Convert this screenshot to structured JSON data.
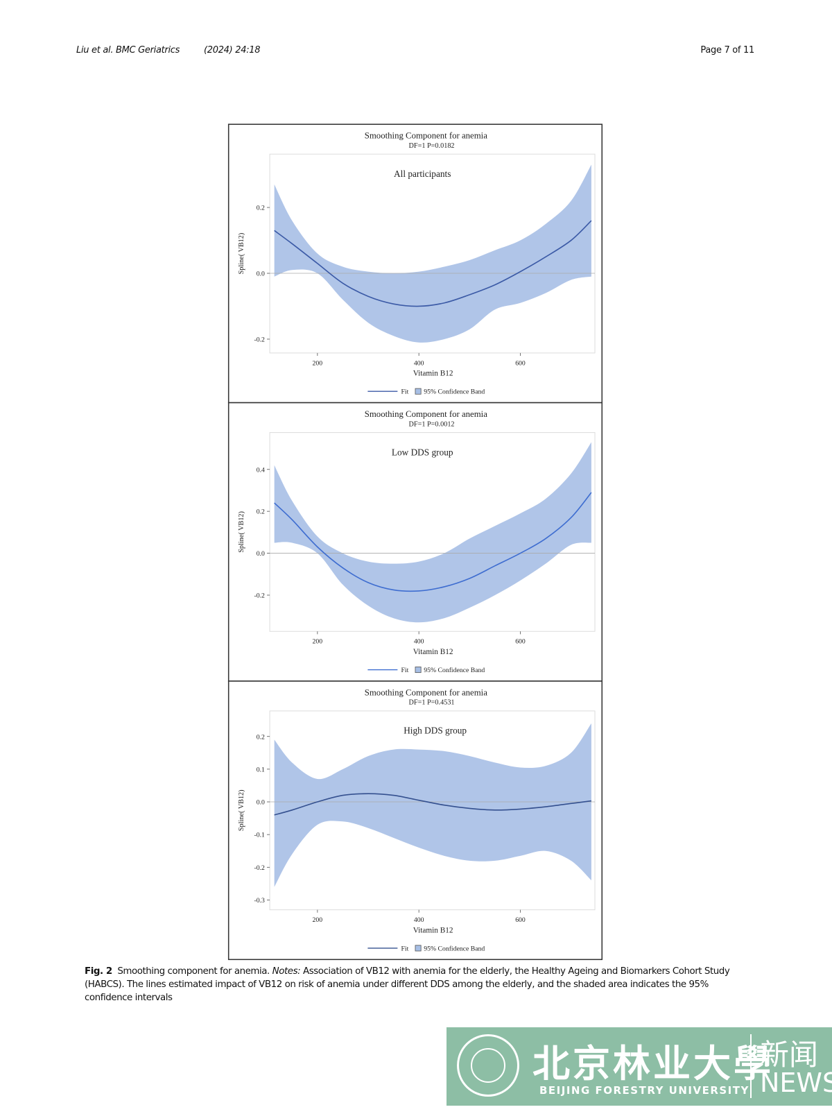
{
  "header": {
    "journal": "Liu et al. BMC Geriatrics",
    "citation": "(2024) 24:18",
    "page": "Page 7 of 11"
  },
  "chart_data": [
    {
      "type": "line",
      "title": "Smoothing Component for anemia",
      "subtitle": "DF=1 P=0.0182",
      "annotation": "All participants",
      "x_label": "Vitamin B12",
      "y_label": "Spline( VB12)",
      "x": [
        115,
        150,
        200,
        250,
        300,
        350,
        400,
        450,
        500,
        550,
        600,
        650,
        700,
        740
      ],
      "series": [
        {
          "name": "Fit",
          "color": "#3b5aa6",
          "values": [
            0.13,
            0.09,
            0.03,
            -0.03,
            -0.07,
            -0.093,
            -0.1,
            -0.09,
            -0.065,
            -0.035,
            0.005,
            0.05,
            0.1,
            0.16
          ]
        }
      ],
      "band": {
        "name": "95% Confidence Band",
        "color": "#a7bfe5",
        "upper": [
          0.27,
          0.16,
          0.06,
          0.02,
          0.005,
          0.0,
          0.005,
          0.02,
          0.04,
          0.07,
          0.1,
          0.15,
          0.22,
          0.33
        ],
        "lower": [
          -0.01,
          0.01,
          0.0,
          -0.08,
          -0.15,
          -0.19,
          -0.21,
          -0.2,
          -0.17,
          -0.11,
          -0.09,
          -0.06,
          -0.02,
          -0.01
        ]
      },
      "reference_line": 0,
      "xlim": [
        106,
        747
      ],
      "xticks": [
        200,
        400,
        600
      ],
      "ylim": [
        -0.242,
        0.362
      ],
      "yticks": [
        -0.2,
        {
          "value": 0,
          "label": "0.0"
        },
        0.2
      ]
    },
    {
      "type": "line",
      "title": "Smoothing Component for anemia",
      "subtitle": "DF=1 P=0.0012",
      "annotation": "Low DDS group",
      "x_label": "Vitamin B12",
      "y_label": "Spline( VB12)",
      "x": [
        115,
        150,
        200,
        250,
        300,
        350,
        400,
        450,
        500,
        550,
        600,
        650,
        700,
        740
      ],
      "series": [
        {
          "name": "Fit",
          "color": "#3e6dd0",
          "values": [
            0.24,
            0.16,
            0.03,
            -0.07,
            -0.14,
            -0.175,
            -0.18,
            -0.16,
            -0.12,
            -0.06,
            0.0,
            0.07,
            0.17,
            0.29
          ]
        }
      ],
      "band": {
        "name": "95% Confidence Band",
        "color": "#a7bfe5",
        "upper": [
          0.42,
          0.25,
          0.08,
          0.0,
          -0.04,
          -0.05,
          -0.04,
          0.0,
          0.07,
          0.13,
          0.19,
          0.26,
          0.38,
          0.53
        ],
        "lower": [
          0.05,
          0.05,
          0.0,
          -0.15,
          -0.25,
          -0.31,
          -0.33,
          -0.31,
          -0.26,
          -0.2,
          -0.13,
          -0.05,
          0.04,
          0.05
        ]
      },
      "reference_line": 0,
      "xlim": [
        106,
        747
      ],
      "xticks": [
        200,
        400,
        600
      ],
      "ylim": [
        -0.373,
        0.576
      ],
      "yticks": [
        -0.2,
        {
          "value": 0,
          "label": "0.0"
        },
        0.2,
        0.4
      ]
    },
    {
      "type": "line",
      "title": "Smoothing Component for anemia",
      "subtitle": "DF=1 P=0.4531",
      "annotation": "High DDS group",
      "x_label": "Vitamin B12",
      "y_label": "Spline( VB12)",
      "x": [
        115,
        150,
        200,
        250,
        300,
        350,
        400,
        450,
        500,
        550,
        600,
        650,
        700,
        740
      ],
      "series": [
        {
          "name": "Fit",
          "color": "#34508f",
          "values": [
            -0.04,
            -0.025,
            0.0,
            0.02,
            0.025,
            0.02,
            0.005,
            -0.01,
            -0.02,
            -0.025,
            -0.022,
            -0.015,
            -0.005,
            0.003
          ]
        }
      ],
      "band": {
        "name": "95% Confidence Band",
        "color": "#a7bfe5",
        "upper": [
          0.19,
          0.12,
          0.07,
          0.1,
          0.14,
          0.16,
          0.16,
          0.155,
          0.14,
          0.12,
          0.105,
          0.11,
          0.15,
          0.24
        ],
        "lower": [
          -0.26,
          -0.16,
          -0.07,
          -0.06,
          -0.08,
          -0.11,
          -0.14,
          -0.165,
          -0.18,
          -0.18,
          -0.165,
          -0.15,
          -0.18,
          -0.24
        ]
      },
      "reference_line": 0,
      "xlim": [
        106,
        747
      ],
      "xticks": [
        200,
        400,
        600
      ],
      "ylim": [
        -0.33,
        0.278
      ],
      "yticks": [
        -0.3,
        -0.2,
        -0.1,
        {
          "value": 0,
          "label": "0.0"
        },
        0.1,
        0.2
      ]
    }
  ],
  "caption": {
    "label": "Fig. 2",
    "title": "Smoothing component for anemia.",
    "notes_label": "Notes:",
    "text": "Association of VB12 with anemia for the elderly, the Healthy Ageing and Biomarkers Cohort Study (HABCS). The lines estimated impact of VB12 on risk of anemia under different DDS among the elderly, and the shaded area indicates the 95% confidence intervals"
  },
  "logo": {
    "name_cn": "北京林业大學",
    "name_en": "BEIJING FORESTRY UNIVERSITY",
    "news_cn": "新闻",
    "news_en": "NEWS"
  }
}
